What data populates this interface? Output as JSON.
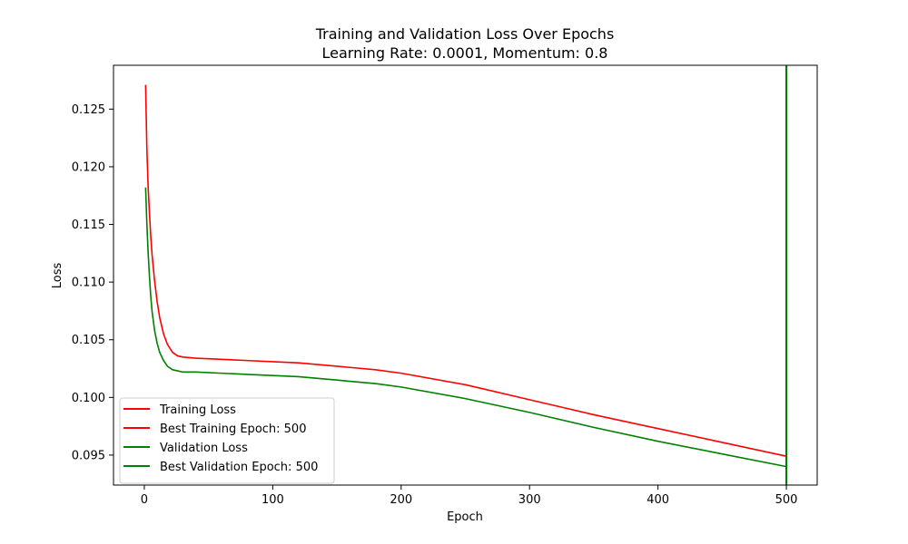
{
  "chart_data": {
    "type": "line",
    "title": "Training and Validation Loss Over Epochs",
    "subtitle": "Learning Rate: 0.0001, Momentum: 0.8",
    "xlabel": "Epoch",
    "ylabel": "Loss",
    "xlim": [
      -24,
      524
    ],
    "ylim": [
      0.0924,
      0.1288
    ],
    "xticks": [
      0,
      100,
      200,
      300,
      400,
      500
    ],
    "xtick_labels": [
      "0",
      "100",
      "200",
      "300",
      "400",
      "500"
    ],
    "yticks": [
      0.095,
      0.1,
      0.105,
      0.11,
      0.115,
      0.12,
      0.125
    ],
    "ytick_labels": [
      "0.095",
      "0.100",
      "0.105",
      "0.110",
      "0.115",
      "0.120",
      "0.125"
    ],
    "grid": false,
    "legend_position": "lower-left",
    "series": [
      {
        "name": "Training Loss",
        "color": "#ff0000",
        "style": "line",
        "x": [
          1,
          2,
          3,
          4,
          5,
          6,
          8,
          10,
          12,
          15,
          18,
          22,
          26,
          30,
          40,
          60,
          80,
          100,
          120,
          140,
          160,
          180,
          200,
          250,
          300,
          350,
          400,
          450,
          500
        ],
        "y": [
          0.1271,
          0.1215,
          0.1182,
          0.116,
          0.114,
          0.1124,
          0.1101,
          0.1083,
          0.1069,
          0.1055,
          0.1046,
          0.1039,
          0.1036,
          0.1035,
          0.1034,
          0.1033,
          0.1032,
          0.1031,
          0.103,
          0.1028,
          0.1026,
          0.1024,
          0.1021,
          0.1011,
          0.0998,
          0.0985,
          0.0973,
          0.0961,
          0.0949
        ]
      },
      {
        "name": "Best Training Epoch: 500",
        "color": "#ff0000",
        "style": "vline",
        "x": 500
      },
      {
        "name": "Validation Loss",
        "color": "#008000",
        "style": "line",
        "x": [
          1,
          2,
          3,
          4,
          5,
          6,
          8,
          10,
          12,
          15,
          18,
          22,
          26,
          30,
          40,
          60,
          80,
          100,
          120,
          140,
          160,
          180,
          200,
          250,
          300,
          350,
          400,
          450,
          500
        ],
        "y": [
          0.1182,
          0.115,
          0.1125,
          0.1105,
          0.1088,
          0.1075,
          0.1058,
          0.1047,
          0.1039,
          0.1032,
          0.1027,
          0.1024,
          0.1023,
          0.1022,
          0.1022,
          0.1021,
          0.102,
          0.1019,
          0.1018,
          0.1016,
          0.1014,
          0.1012,
          0.1009,
          0.0999,
          0.0987,
          0.0974,
          0.0962,
          0.0951,
          0.094
        ]
      },
      {
        "name": "Best Validation Epoch: 500",
        "color": "#008000",
        "style": "vline",
        "x": 500
      }
    ]
  }
}
